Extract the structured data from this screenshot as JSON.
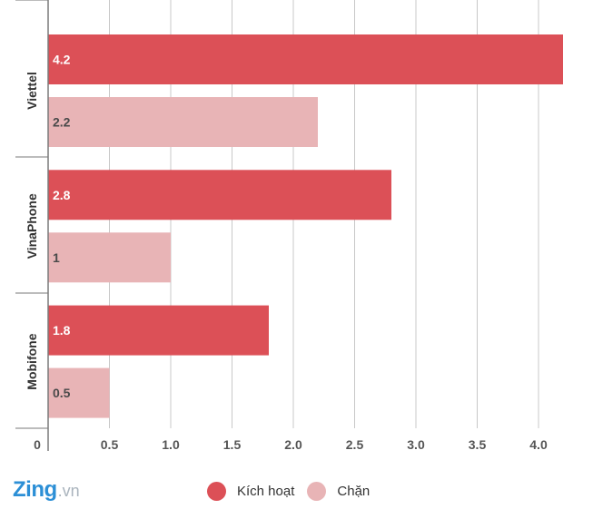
{
  "chart_data": {
    "type": "bar",
    "orientation": "horizontal",
    "categories": [
      "Viettel",
      "VinaPhone",
      "Mobifone"
    ],
    "series": [
      {
        "name": "Kích hoạt",
        "color": "#dc5057",
        "values": [
          4.2,
          2.8,
          1.8
        ],
        "value_labels": [
          "4.2",
          "2.8",
          "1.8"
        ]
      },
      {
        "name": "Chặn",
        "color": "#e8b4b6",
        "values": [
          2.2,
          1,
          0.5
        ],
        "value_labels": [
          "2.2",
          "1",
          "0.5"
        ]
      }
    ],
    "xlim": [
      0,
      4.3
    ],
    "x_ticks": [
      0,
      0.5,
      1.0,
      1.5,
      2.0,
      2.5,
      3.0,
      3.5,
      4.0
    ],
    "x_tick_labels": [
      "0",
      "0.5",
      "1.0",
      "1.5",
      "2.0",
      "2.5",
      "3.0",
      "3.5",
      "4.0"
    ],
    "grid": true,
    "legend_position": "bottom"
  },
  "logo": {
    "main": "Zing",
    "sub": ".vn"
  }
}
